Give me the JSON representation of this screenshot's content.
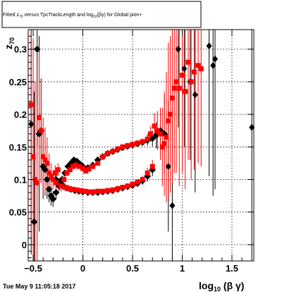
{
  "chart_data": {
    "type": "scatter",
    "title": {
      "pre": "Fitted  z",
      "sub1": "70",
      "mid": "  versus TpcTrackLength and log",
      "sub2": "10",
      "post": "(βγ) for Global pion+"
    },
    "ylabel": {
      "main": "z",
      "sub": "70"
    },
    "xlabel": {
      "main": "log",
      "sub": "10",
      "post": " (β γ)"
    },
    "timestamp": "Tue May  9 11:05:18 2017",
    "xlim": [
      -0.55,
      1.72
    ],
    "ylim": [
      -0.025,
      0.33
    ],
    "x_ticks": [
      {
        "value": -0.5,
        "label": "−0.5"
      },
      {
        "value": 0,
        "label": "0"
      },
      {
        "value": 0.5,
        "label": "0.5"
      },
      {
        "value": 1,
        "label": "1"
      },
      {
        "value": 1.5,
        "label": "1.5"
      }
    ],
    "y_ticks": [
      {
        "value": 0,
        "label": "0"
      },
      {
        "value": 0.05,
        "label": "0.05"
      },
      {
        "value": 0.1,
        "label": "0.1"
      },
      {
        "value": 0.15,
        "label": "0.15"
      },
      {
        "value": 0.2,
        "label": "0.2"
      },
      {
        "value": 0.25,
        "label": "0.25"
      },
      {
        "value": 0.3,
        "label": "0.3"
      }
    ],
    "grid": true,
    "series": [
      {
        "color": "#000000",
        "markers": "square",
        "points": [
          [
            -0.52,
            0.185,
            0.2
          ],
          [
            -0.49,
            0.035,
            0.2
          ],
          [
            -0.46,
            0.3,
            0.15
          ],
          [
            -0.44,
            0.17,
            0.15
          ],
          [
            -0.42,
            0.175,
            0.08
          ],
          [
            -0.4,
            0.12,
            0.05
          ],
          [
            -0.38,
            0.115,
            0.04
          ],
          [
            -0.36,
            0.1,
            0.03
          ],
          [
            -0.34,
            0.085,
            0.02
          ],
          [
            -0.32,
            0.075,
            0.015
          ],
          [
            -0.3,
            0.07,
            0.012
          ],
          [
            -0.27,
            0.08,
            0.01
          ],
          [
            -0.24,
            0.09,
            0.008
          ],
          [
            -0.21,
            0.1,
            0.006
          ],
          [
            -0.18,
            0.11,
            0.005
          ],
          [
            -0.15,
            0.12,
            0.004
          ],
          [
            -0.12,
            0.125,
            0.003
          ],
          [
            -0.09,
            0.13,
            0.003
          ],
          [
            -0.06,
            0.128,
            0.002
          ],
          [
            -0.03,
            0.124,
            0.002
          ],
          [
            0.0,
            0.12,
            0.002
          ],
          [
            0.05,
            0.118,
            0.002
          ],
          [
            0.1,
            0.122,
            0.002
          ],
          [
            0.15,
            0.13,
            0.002
          ],
          [
            0.2,
            0.135,
            0.002
          ],
          [
            0.25,
            0.14,
            0.002
          ],
          [
            0.3,
            0.143,
            0.002
          ],
          [
            0.35,
            0.146,
            0.002
          ],
          [
            0.4,
            0.149,
            0.002
          ],
          [
            0.45,
            0.151,
            0.003
          ],
          [
            0.5,
            0.153,
            0.003
          ],
          [
            0.55,
            0.155,
            0.004
          ],
          [
            0.6,
            0.157,
            0.005
          ],
          [
            0.65,
            0.16,
            0.008
          ],
          [
            0.7,
            0.163,
            0.012
          ],
          [
            0.74,
            0.168,
            0.02
          ],
          [
            0.78,
            0.175,
            0.03
          ],
          [
            0.82,
            0.17,
            0.06
          ],
          [
            0.86,
            0.12,
            0.1
          ],
          [
            0.9,
            0.06,
            0.15
          ],
          [
            0.96,
            0.3,
            0.12
          ],
          [
            1.02,
            0.27,
            0.12
          ],
          [
            1.08,
            0.25,
            0.12
          ],
          [
            1.13,
            0.23,
            0.15
          ],
          [
            1.27,
            0.305,
            0.2
          ],
          [
            1.31,
            0.275,
            0.2
          ],
          [
            1.33,
            0.285,
            0.2
          ],
          [
            1.7,
            0.18,
            0.2
          ],
          [
            -0.27,
            0.1,
            0.01
          ],
          [
            -0.23,
            0.095,
            0.008
          ],
          [
            -0.2,
            0.09,
            0.006
          ],
          [
            -0.16,
            0.087,
            0.005
          ],
          [
            -0.12,
            0.085,
            0.004
          ],
          [
            -0.08,
            0.083,
            0.003
          ],
          [
            -0.04,
            0.082,
            0.003
          ],
          [
            0.0,
            0.081,
            0.002
          ],
          [
            0.05,
            0.08,
            0.002
          ],
          [
            0.1,
            0.08,
            0.002
          ],
          [
            0.15,
            0.08,
            0.002
          ],
          [
            0.2,
            0.081,
            0.002
          ],
          [
            0.25,
            0.082,
            0.002
          ],
          [
            0.3,
            0.083,
            0.002
          ],
          [
            0.35,
            0.085,
            0.003
          ],
          [
            0.4,
            0.087,
            0.003
          ],
          [
            0.45,
            0.089,
            0.003
          ],
          [
            0.5,
            0.091,
            0.004
          ],
          [
            0.55,
            0.094,
            0.005
          ],
          [
            0.6,
            0.098,
            0.006
          ],
          [
            0.65,
            0.105,
            0.008
          ],
          [
            0.7,
            0.115,
            0.01
          ]
        ]
      },
      {
        "color": "#ff0000",
        "markers": "square",
        "points": [
          [
            -0.52,
            0.215,
            0.2
          ],
          [
            -0.5,
            0.135,
            0.18
          ],
          [
            -0.48,
            0.1,
            0.15
          ],
          [
            -0.46,
            0.095,
            0.12
          ],
          [
            -0.44,
            0.195,
            0.1
          ],
          [
            -0.42,
            0.175,
            0.08
          ],
          [
            -0.4,
            0.135,
            0.06
          ],
          [
            -0.38,
            0.13,
            0.05
          ],
          [
            -0.36,
            0.125,
            0.04
          ],
          [
            -0.34,
            0.11,
            0.03
          ],
          [
            -0.32,
            0.105,
            0.02
          ],
          [
            -0.3,
            0.1,
            0.015
          ],
          [
            -0.28,
            0.11,
            0.012
          ],
          [
            -0.25,
            0.115,
            0.01
          ],
          [
            -0.22,
            0.09,
            0.008
          ],
          [
            -0.19,
            0.1,
            0.007
          ],
          [
            -0.16,
            0.11,
            0.005
          ],
          [
            -0.13,
            0.115,
            0.004
          ],
          [
            -0.1,
            0.12,
            0.003
          ],
          [
            -0.07,
            0.122,
            0.003
          ],
          [
            -0.04,
            0.12,
            0.002
          ],
          [
            0.0,
            0.117,
            0.002
          ],
          [
            0.03,
            0.113,
            0.002
          ],
          [
            0.06,
            0.116,
            0.002
          ],
          [
            0.1,
            0.12,
            0.002
          ],
          [
            0.15,
            0.125,
            0.002
          ],
          [
            0.2,
            0.135,
            0.002
          ],
          [
            0.25,
            0.14,
            0.002
          ],
          [
            0.3,
            0.143,
            0.002
          ],
          [
            0.35,
            0.147,
            0.002
          ],
          [
            0.4,
            0.15,
            0.002
          ],
          [
            0.45,
            0.152,
            0.003
          ],
          [
            0.5,
            0.154,
            0.003
          ],
          [
            0.55,
            0.156,
            0.004
          ],
          [
            0.6,
            0.158,
            0.005
          ],
          [
            0.65,
            0.162,
            0.008
          ],
          [
            0.68,
            0.17,
            0.012
          ],
          [
            0.72,
            0.182,
            0.02
          ],
          [
            0.75,
            0.175,
            0.03
          ],
          [
            0.78,
            0.17,
            0.04
          ],
          [
            0.8,
            0.15,
            0.06
          ],
          [
            0.82,
            0.155,
            0.08
          ],
          [
            0.84,
            0.165,
            0.1
          ],
          [
            0.86,
            0.19,
            0.12
          ],
          [
            0.88,
            0.2,
            0.12
          ],
          [
            0.9,
            0.225,
            0.13
          ],
          [
            0.92,
            0.24,
            0.13
          ],
          [
            0.94,
            0.25,
            0.14
          ],
          [
            0.97,
            0.24,
            0.15
          ],
          [
            1.0,
            0.26,
            0.15
          ],
          [
            1.03,
            0.235,
            0.15
          ],
          [
            1.06,
            0.28,
            0.15
          ],
          [
            1.09,
            0.25,
            0.15
          ],
          [
            1.12,
            0.265,
            0.15
          ],
          [
            1.16,
            0.275,
            0.15
          ],
          [
            1.19,
            0.27,
            0.15
          ],
          [
            -0.27,
            0.095,
            0.01
          ],
          [
            -0.22,
            0.09,
            0.008
          ],
          [
            -0.18,
            0.088,
            0.006
          ],
          [
            -0.14,
            0.086,
            0.005
          ],
          [
            -0.1,
            0.085,
            0.004
          ],
          [
            -0.06,
            0.084,
            0.003
          ],
          [
            -0.02,
            0.083,
            0.003
          ],
          [
            0.02,
            0.082,
            0.002
          ],
          [
            0.06,
            0.081,
            0.002
          ],
          [
            0.1,
            0.081,
            0.002
          ],
          [
            0.15,
            0.082,
            0.002
          ],
          [
            0.2,
            0.082,
            0.002
          ],
          [
            0.25,
            0.083,
            0.002
          ],
          [
            0.3,
            0.084,
            0.002
          ],
          [
            0.35,
            0.086,
            0.003
          ],
          [
            0.4,
            0.088,
            0.003
          ],
          [
            0.45,
            0.09,
            0.003
          ],
          [
            0.5,
            0.093,
            0.004
          ],
          [
            0.55,
            0.096,
            0.005
          ],
          [
            0.6,
            0.1,
            0.006
          ],
          [
            0.65,
            0.11,
            0.008
          ],
          [
            0.7,
            0.12,
            0.01
          ]
        ]
      }
    ]
  }
}
